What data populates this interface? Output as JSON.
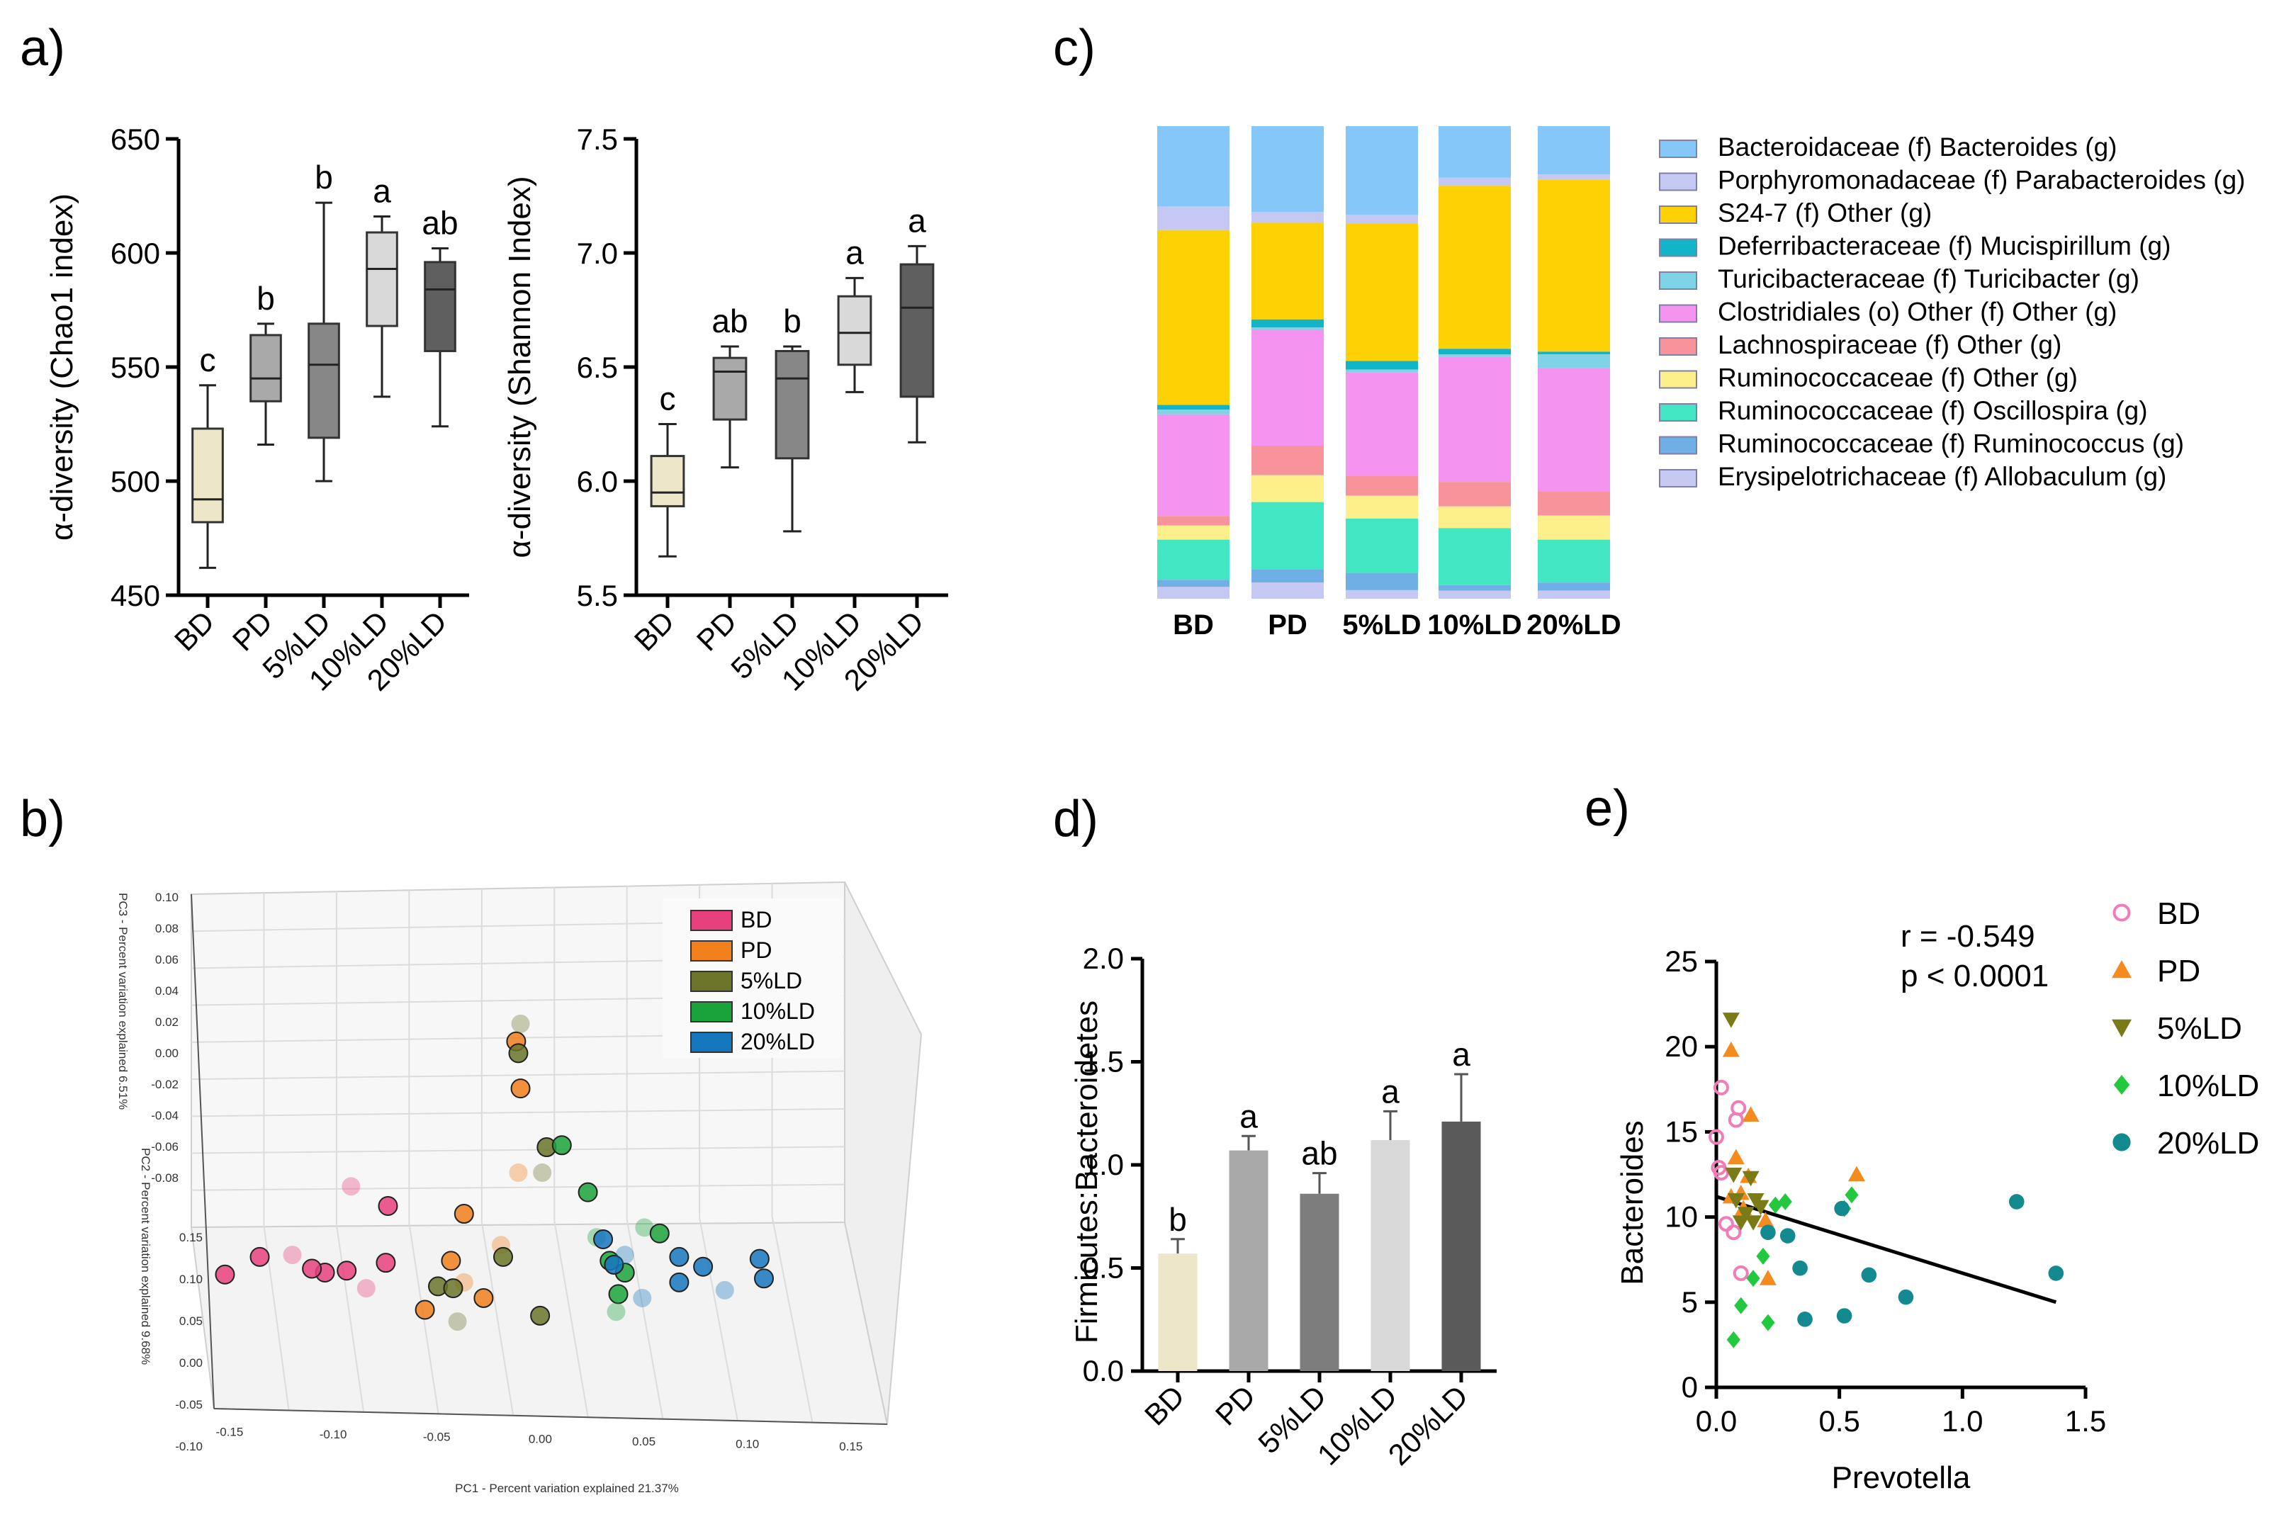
{
  "panel_labels": [
    "a)",
    "b)",
    "c)",
    "d)",
    "e)"
  ],
  "chart_data": [
    {
      "id": "a1",
      "type": "box",
      "ylabel": "α-diversity (Chao1 index)",
      "ylim": [
        450,
        650
      ],
      "yticks": [
        "450",
        "500",
        "550",
        "600",
        "650"
      ],
      "categories": [
        "BD",
        "PD",
        "5%LD",
        "10%LD",
        "20%LD"
      ],
      "boxes": [
        {
          "min": 462,
          "q1": 482,
          "median": 492,
          "q3": 523,
          "max": 542,
          "sig": "c",
          "color": "#ede6c8"
        },
        {
          "min": 516,
          "q1": 535,
          "median": 545,
          "q3": 564,
          "max": 569,
          "sig": "b",
          "color": "#a9a9a9"
        },
        {
          "min": 500,
          "q1": 519,
          "median": 551,
          "q3": 569,
          "max": 622,
          "sig": "b",
          "color": "#878787"
        },
        {
          "min": 537,
          "q1": 568,
          "median": 593,
          "q3": 609,
          "max": 616,
          "sig": "a",
          "color": "#d9d9d9"
        },
        {
          "min": 524,
          "q1": 557,
          "median": 584,
          "q3": 596,
          "max": 602,
          "sig": "ab",
          "color": "#5f5f5f"
        }
      ]
    },
    {
      "id": "a2",
      "type": "box",
      "ylabel": "α-diversity (Shannon Index)",
      "ylim": [
        5.5,
        7.5
      ],
      "yticks": [
        "5.5",
        "6.0",
        "6.5",
        "7.0",
        "7.5"
      ],
      "categories": [
        "BD",
        "PD",
        "5%LD",
        "10%LD",
        "20%LD"
      ],
      "boxes": [
        {
          "min": 5.67,
          "q1": 5.89,
          "median": 5.95,
          "q3": 6.11,
          "max": 6.25,
          "sig": "c",
          "color": "#ede6c8"
        },
        {
          "min": 6.06,
          "q1": 6.27,
          "median": 6.48,
          "q3": 6.54,
          "max": 6.59,
          "sig": "ab",
          "color": "#a9a9a9"
        },
        {
          "min": 5.78,
          "q1": 6.1,
          "median": 6.45,
          "q3": 6.57,
          "max": 6.59,
          "sig": "b",
          "color": "#878787"
        },
        {
          "min": 6.39,
          "q1": 6.51,
          "median": 6.65,
          "q3": 6.81,
          "max": 6.89,
          "sig": "a",
          "color": "#d9d9d9"
        },
        {
          "min": 6.17,
          "q1": 6.37,
          "median": 6.76,
          "q3": 6.95,
          "max": 7.03,
          "sig": "a",
          "color": "#5f5f5f"
        }
      ]
    },
    {
      "id": "b",
      "type": "scatter3d",
      "xlabel": "PC1 - Percent variation explained 21.37%",
      "ylabel_upper": "PC3 - Percent variation explained 6.51%",
      "ylabel_lower": "PC2 - Percent variation explained 9.68%",
      "x_ticks": [
        "-0.15",
        "-0.10",
        "-0.05",
        "0.00",
        "0.05",
        "0.10",
        "0.15"
      ],
      "y_ticks_upper": [
        "0.10",
        "0.08",
        "0.06",
        "0.04",
        "0.02",
        "0.00",
        "-0.02",
        "-0.04",
        "-0.06",
        "-0.08"
      ],
      "y_ticks_lower": [
        "0.15",
        "0.10",
        "0.05",
        "0.00",
        "-0.05",
        "-0.10"
      ],
      "legend": [
        {
          "name": "BD",
          "color": "#e8407c"
        },
        {
          "name": "PD",
          "color": "#f07f1c"
        },
        {
          "name": "5%LD",
          "color": "#6b7428"
        },
        {
          "name": "10%LD",
          "color": "#1aa33a"
        },
        {
          "name": "20%LD",
          "color": "#1577bd"
        }
      ],
      "groups": [
        {
          "name": "BD",
          "points": [
            [
              -0.143,
              0.133
            ],
            [
              -0.127,
              0.142
            ],
            [
              -0.112,
              0.143
            ],
            [
              -0.097,
              0.134
            ],
            [
              -0.087,
              0.135
            ],
            [
              -0.078,
              0.126
            ],
            [
              -0.069,
              0.139
            ],
            [
              -0.103,
              0.136
            ],
            [
              -0.085,
              0.178
            ],
            [
              -0.068,
              0.168
            ]
          ]
        },
        {
          "name": "PD",
          "points": [
            [
              -0.051,
              0.115
            ],
            [
              -0.039,
              0.14
            ],
            [
              -0.033,
              0.129
            ],
            [
              -0.024,
              0.121
            ],
            [
              -0.033,
              0.164
            ],
            [
              -0.008,
              0.185
            ],
            [
              -0.007,
              0.228
            ],
            [
              -0.009,
              0.252
            ],
            [
              -0.016,
              0.148
            ]
          ]
        },
        {
          "name": "5%LD",
          "points": [
            [
              -0.045,
              0.127
            ],
            [
              -0.038,
              0.126
            ],
            [
              -0.036,
              0.109
            ],
            [
              -0.008,
              0.246
            ],
            [
              0.002,
              0.112
            ],
            [
              0.003,
              0.185
            ],
            [
              0.005,
              0.198
            ],
            [
              -0.015,
              0.142
            ],
            [
              -0.007,
              0.261
            ]
          ]
        },
        {
          "name": "10%LD",
          "points": [
            [
              0.012,
              0.199
            ],
            [
              0.024,
              0.175
            ],
            [
              0.028,
              0.152
            ],
            [
              0.034,
              0.14
            ],
            [
              0.041,
              0.134
            ],
            [
              0.05,
              0.157
            ],
            [
              0.057,
              0.154
            ],
            [
              0.038,
              0.123
            ],
            [
              0.037,
              0.114
            ]
          ]
        },
        {
          "name": "20%LD",
          "points": [
            [
              0.031,
              0.151
            ],
            [
              0.036,
              0.138
            ],
            [
              0.041,
              0.143
            ],
            [
              0.066,
              0.142
            ],
            [
              0.077,
              0.137
            ],
            [
              0.087,
              0.125
            ],
            [
              0.103,
              0.141
            ],
            [
              0.105,
              0.131
            ],
            [
              0.049,
              0.121
            ],
            [
              0.066,
              0.129
            ]
          ]
        }
      ]
    },
    {
      "id": "c",
      "type": "stacked_bar",
      "ylim": [
        0,
        100
      ],
      "categories": [
        "BD",
        "PD",
        "5%LD",
        "10%LD",
        "20%LD"
      ],
      "series": [
        {
          "name": "Bacteroidaceae (f) Bacteroides (g)",
          "color": "#85c7f8",
          "values": [
            17,
            16,
            15.5,
            9.5,
            9
          ]
        },
        {
          "name": "Porphyromonadaceae (f) Parabacteroides (g)",
          "color": "#c4c8f2",
          "values": [
            5,
            2,
            1.5,
            1.5,
            1
          ]
        },
        {
          "name": "S24-7 (f) Other (g)",
          "color": "#fdd103",
          "values": [
            37,
            18,
            24,
            30,
            32
          ]
        },
        {
          "name": "Deferribacteraceae (f) Mucispirillum (g)",
          "color": "#12b5c8",
          "values": [
            1,
            1.5,
            1.5,
            1,
            0.5
          ]
        },
        {
          "name": "Turicibacteraceae (f) Turicibacter (g)",
          "color": "#7fd3e6",
          "values": [
            1,
            0.5,
            0.5,
            0.5,
            2.5
          ]
        },
        {
          "name": "Clostridiales (o) Other (f) Other (g)",
          "color": "#f593f1",
          "values": [
            21.5,
            21.5,
            18,
            23,
            23
          ]
        },
        {
          "name": "Lachnospiraceae (f) Other (g)",
          "color": "#f7939a",
          "values": [
            2,
            5.5,
            3.5,
            4.5,
            4.5
          ]
        },
        {
          "name": "Ruminococcaceae (f) Other (g)",
          "color": "#fdf08a",
          "values": [
            3,
            5,
            4,
            4,
            4.5
          ]
        },
        {
          "name": "Ruminococcaceae (f) Oscillospira (g)",
          "color": "#43e6c3",
          "values": [
            8.5,
            12.5,
            9.5,
            10.5,
            8
          ]
        },
        {
          "name": "Ruminococcaceae (f) Ruminococcus (g)",
          "color": "#70aee6",
          "values": [
            1.5,
            2.5,
            3,
            1,
            1.5
          ]
        },
        {
          "name": "Erysipelotrichaceae (f) Allobaculum (g)",
          "color": "#c4c8f2",
          "values": [
            2.5,
            3,
            1.5,
            1.5,
            1.5
          ]
        }
      ]
    },
    {
      "id": "d",
      "type": "bar",
      "ylabel": "Firmicutes:Bacteroidetes",
      "ylim": [
        0,
        2.0
      ],
      "yticks": [
        "0.0",
        "0.5",
        "1.0",
        "1.5",
        "2.0"
      ],
      "categories": [
        "BD",
        "PD",
        "5%LD",
        "10%LD",
        "20%LD"
      ],
      "values": [
        0.57,
        1.07,
        0.86,
        1.12,
        1.21
      ],
      "errors": [
        0.07,
        0.07,
        0.1,
        0.14,
        0.23
      ],
      "sig": [
        "b",
        "a",
        "ab",
        "a",
        "a"
      ],
      "colors": [
        "#ede6c8",
        "#a9a9a9",
        "#7d7d7d",
        "#d9d9d9",
        "#5a5a5a"
      ]
    },
    {
      "id": "e",
      "type": "scatter",
      "xlabel": "Prevotella",
      "ylabel": "Bacteroides",
      "xlim": [
        0,
        1.5
      ],
      "ylim": [
        0,
        25
      ],
      "xticks": [
        "0.0",
        "0.5",
        "1.0",
        "1.5"
      ],
      "yticks": [
        "0",
        "5",
        "10",
        "15",
        "20",
        "25"
      ],
      "stats": {
        "r": "r = -0.549",
        "p": "p < 0.0001"
      },
      "regression": {
        "x0": 0.0,
        "y0": 11.2,
        "x1": 1.38,
        "y1": 5.0
      },
      "groups": [
        {
          "name": "BD",
          "marker": "circle-open",
          "color": "#f07cb8",
          "points": [
            [
              0.0,
              14.7
            ],
            [
              0.01,
              12.9
            ],
            [
              0.02,
              12.6
            ],
            [
              0.02,
              17.6
            ],
            [
              0.07,
              9.1
            ],
            [
              0.08,
              15.7
            ],
            [
              0.09,
              16.4
            ],
            [
              0.1,
              6.7
            ],
            [
              0.04,
              9.6
            ]
          ]
        },
        {
          "name": "PD",
          "marker": "triangle",
          "color": "#f58a1f",
          "points": [
            [
              0.06,
              19.8
            ],
            [
              0.08,
              13.5
            ],
            [
              0.1,
              11.4
            ],
            [
              0.11,
              10.5
            ],
            [
              0.13,
              12.4
            ],
            [
              0.14,
              16.0
            ],
            [
              0.21,
              6.4
            ],
            [
              0.2,
              9.8
            ],
            [
              0.57,
              12.5
            ],
            [
              0.06,
              11.2
            ]
          ]
        },
        {
          "name": "5%LD",
          "marker": "triangle-down",
          "color": "#7a7a17",
          "points": [
            [
              0.06,
              21.6
            ],
            [
              0.07,
              12.5
            ],
            [
              0.08,
              11.0
            ],
            [
              0.1,
              9.7
            ],
            [
              0.12,
              10.2
            ],
            [
              0.15,
              9.7
            ],
            [
              0.16,
              11.0
            ],
            [
              0.14,
              12.3
            ],
            [
              0.18,
              10.6
            ]
          ]
        },
        {
          "name": "10%LD",
          "marker": "diamond",
          "color": "#22c93e",
          "points": [
            [
              0.07,
              2.8
            ],
            [
              0.1,
              4.8
            ],
            [
              0.15,
              6.4
            ],
            [
              0.19,
              7.7
            ],
            [
              0.21,
              3.8
            ],
            [
              0.24,
              10.7
            ],
            [
              0.28,
              10.9
            ],
            [
              0.52,
              10.5
            ],
            [
              0.55,
              11.3
            ]
          ]
        },
        {
          "name": "20%LD",
          "marker": "circle",
          "color": "#138a8f",
          "points": [
            [
              0.29,
              8.9
            ],
            [
              0.34,
              7.0
            ],
            [
              0.36,
              4.0
            ],
            [
              0.51,
              10.5
            ],
            [
              0.52,
              4.2
            ],
            [
              0.62,
              6.6
            ],
            [
              0.77,
              5.3
            ],
            [
              1.22,
              10.9
            ],
            [
              1.38,
              6.7
            ],
            [
              0.21,
              9.1
            ]
          ]
        }
      ]
    }
  ]
}
